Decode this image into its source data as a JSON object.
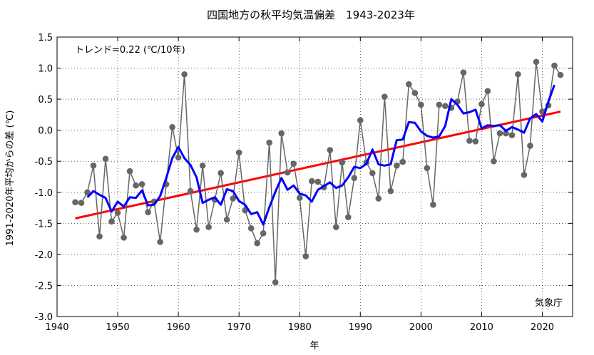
{
  "chart_data": {
    "type": "line",
    "title": "四国地方の秋平均気温偏差　1943-2023年",
    "xlabel": "年",
    "ylabel": "1991-2020年平均からの差 (℃)",
    "trend_label": "トレンド=0.22 (℃/10年)",
    "source_label": "気象庁",
    "xlim": [
      1940,
      2025
    ],
    "ylim": [
      -3.0,
      1.5
    ],
    "x_ticks": [
      1940,
      1950,
      1960,
      1970,
      1980,
      1990,
      2000,
      2010,
      2020
    ],
    "y_ticks": [
      1.5,
      1.0,
      0.5,
      0.0,
      -0.5,
      -1.0,
      -1.5,
      -2.0,
      -2.5,
      -3.0
    ],
    "y_tick_labels": [
      "1.5",
      "1.0",
      "0.5",
      "0.0",
      "-0.5",
      "-1.0",
      "-1.5",
      "-2.0",
      "-2.5",
      "-3.0"
    ],
    "grid": true,
    "colors": {
      "annual": "#666666",
      "moving_avg": "#0000ff",
      "trend": "#ff0000"
    },
    "series": [
      {
        "style": "gray-line-with-dots",
        "x_start": 1943,
        "values": [
          -1.16,
          -1.17,
          -1.0,
          -0.57,
          -1.71,
          -0.46,
          -1.47,
          -1.33,
          -1.73,
          -0.66,
          -0.89,
          -0.87,
          -1.32,
          -1.15,
          -1.8,
          -0.87,
          0.05,
          -0.44,
          0.9,
          -0.98,
          -1.6,
          -0.57,
          -1.56,
          -1.12,
          -0.69,
          -1.44,
          -1.1,
          -0.36,
          -1.29,
          -1.58,
          -1.82,
          -1.66,
          -0.2,
          -2.45,
          -0.05,
          -0.68,
          -0.54,
          -1.09,
          -2.03,
          -0.82,
          -0.83,
          -0.92,
          -0.32,
          -1.56,
          -0.52,
          -1.4,
          -0.77,
          0.16,
          -0.52,
          -0.69,
          -1.1,
          0.54,
          -0.98,
          -0.57,
          -0.51,
          0.74,
          0.6,
          0.41,
          -0.61,
          -1.2,
          0.41,
          0.39,
          0.36,
          0.46,
          0.93,
          -0.17,
          -0.18,
          0.42,
          0.63,
          -0.5,
          -0.05,
          -0.05,
          -0.08,
          0.9,
          -0.72,
          -0.25,
          1.1,
          0.3,
          0.4,
          1.04,
          0.89
        ]
      },
      {
        "style": "moving-average",
        "x_start": 1945,
        "values": [
          -1.08,
          -0.98,
          -1.04,
          -1.09,
          -1.31,
          -1.15,
          -1.23,
          -1.08,
          -1.09,
          -0.97,
          -1.21,
          -1.2,
          -1.06,
          -0.77,
          -0.45,
          -0.27,
          -0.45,
          -0.56,
          -0.76,
          -1.17,
          -1.12,
          -1.08,
          -1.2,
          -0.95,
          -0.98,
          -1.14,
          -1.2,
          -1.35,
          -1.32,
          -1.52,
          -1.24,
          -0.99,
          -0.77,
          -0.96,
          -0.89,
          -1.02,
          -1.05,
          -1.15,
          -0.96,
          -0.9,
          -0.84,
          -0.93,
          -0.89,
          -0.76,
          -0.59,
          -0.61,
          -0.54,
          -0.31,
          -0.55,
          -0.57,
          -0.55,
          -0.16,
          -0.15,
          0.13,
          0.12,
          -0.02,
          -0.09,
          -0.12,
          -0.1,
          0.07,
          0.5,
          0.41,
          0.27,
          0.29,
          0.33,
          0.03,
          0.08,
          0.07,
          0.08,
          -0.01,
          0.05,
          0.01,
          -0.04,
          0.19,
          0.26,
          0.14,
          0.46,
          0.73
        ]
      },
      {
        "style": "trend",
        "x": [
          1943,
          2023
        ],
        "values": [
          -1.42,
          0.3
        ]
      }
    ]
  }
}
